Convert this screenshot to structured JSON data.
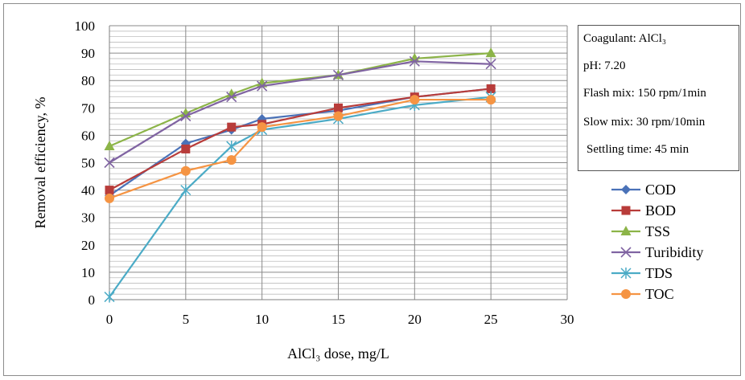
{
  "chart_data": {
    "type": "line",
    "xlabel": "AlCl₃ dose, mg/L",
    "ylabel": "Removal efficiency, %",
    "xlim": [
      0,
      30
    ],
    "ylim": [
      0,
      100
    ],
    "xticks": [
      0,
      5,
      10,
      15,
      20,
      25,
      30
    ],
    "yticks": [
      0,
      10,
      20,
      30,
      40,
      50,
      60,
      70,
      80,
      90,
      100
    ],
    "grid": true,
    "legend_position": "right",
    "x": [
      0,
      5,
      8,
      10,
      15,
      20,
      25
    ],
    "series": [
      {
        "name": "COD",
        "values": [
          38,
          57,
          62,
          66,
          69,
          74,
          77
        ],
        "color": "#4a72b8",
        "marker": "diamond"
      },
      {
        "name": "BOD",
        "values": [
          40,
          55,
          63,
          64,
          70,
          74,
          77
        ],
        "color": "#b83c3a",
        "marker": "square"
      },
      {
        "name": "TSS",
        "values": [
          56,
          68,
          75,
          79,
          82,
          88,
          90
        ],
        "color": "#8cb448",
        "marker": "triangle"
      },
      {
        "name": "Turibidity",
        "values": [
          50,
          67,
          74,
          78,
          82,
          87,
          86
        ],
        "color": "#8064a2",
        "marker": "x"
      },
      {
        "name": "TDS",
        "values": [
          1,
          40,
          56,
          62,
          66,
          71,
          74
        ],
        "color": "#4babc6",
        "marker": "asterisk"
      },
      {
        "name": "TOC",
        "values": [
          37,
          47,
          51,
          63,
          67,
          73,
          73
        ],
        "color": "#f59443",
        "marker": "circle"
      }
    ]
  },
  "info_box": {
    "coagulant": "Coagulant: AlCl₃",
    "ph": "pH: 7.20",
    "flash_mix": "Flash mix: 150 rpm/1min",
    "slow_mix": "Slow mix: 30 rpm/10min",
    "settling": "Settling time: 45 min"
  }
}
